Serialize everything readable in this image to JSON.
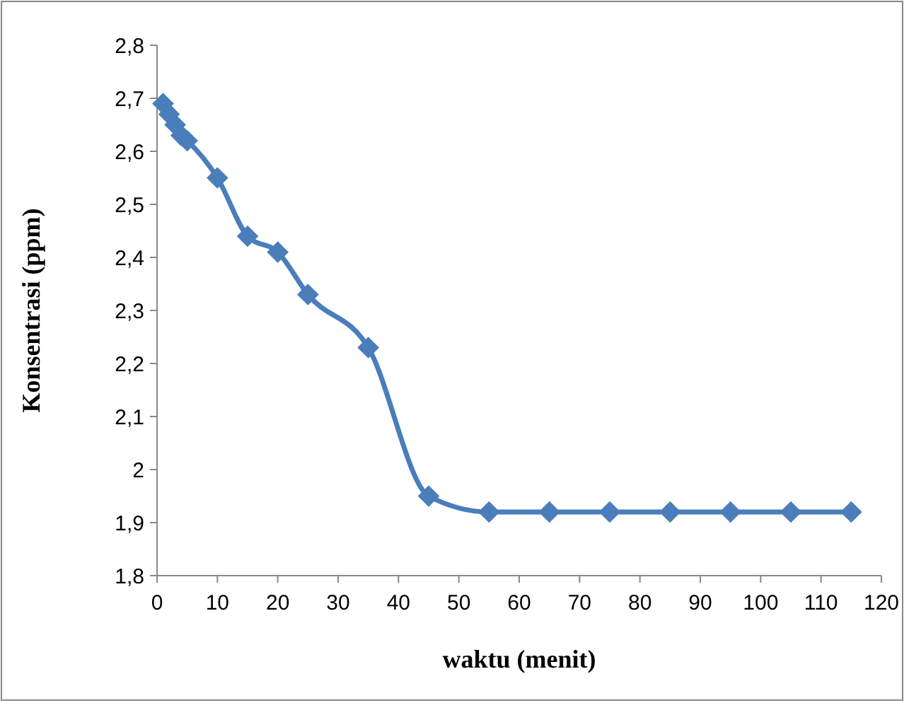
{
  "chart_data": {
    "type": "line",
    "xlabel": "waktu (menit)",
    "ylabel": "Konsentrasi (ppm)",
    "x": [
      1,
      2,
      3,
      4,
      5,
      10,
      15,
      20,
      25,
      35,
      45,
      55,
      65,
      75,
      85,
      95,
      105,
      115
    ],
    "series": [
      {
        "color": "#4a7ebb",
        "values": [
          2.69,
          2.67,
          2.65,
          2.63,
          2.62,
          2.55,
          2.44,
          2.41,
          2.33,
          2.23,
          1.95,
          1.92,
          1.92,
          1.92,
          1.92,
          1.92,
          1.92,
          1.92
        ]
      }
    ],
    "xlim": [
      0,
      120
    ],
    "xticks": [
      0,
      10,
      20,
      30,
      40,
      50,
      60,
      70,
      80,
      90,
      100,
      110,
      120
    ],
    "ylim": [
      1.8,
      2.8
    ],
    "yticks": [
      {
        "value": 1.8,
        "label": "1,8"
      },
      {
        "value": 1.9,
        "label": "1,9"
      },
      {
        "value": 2,
        "label": "2"
      },
      {
        "value": 2.1,
        "label": "2,1"
      },
      {
        "value": 2.2,
        "label": "2,2"
      },
      {
        "value": 2.3,
        "label": "2,3"
      },
      {
        "value": 2.4,
        "label": "2,4"
      },
      {
        "value": 2.5,
        "label": "2,5"
      },
      {
        "value": 2.6,
        "label": "2,6"
      },
      {
        "value": 2.7,
        "label": "2,7"
      },
      {
        "value": 2.8,
        "label": "2,8"
      }
    ],
    "grid": false,
    "marker": "diamond",
    "line_style": "solid"
  }
}
